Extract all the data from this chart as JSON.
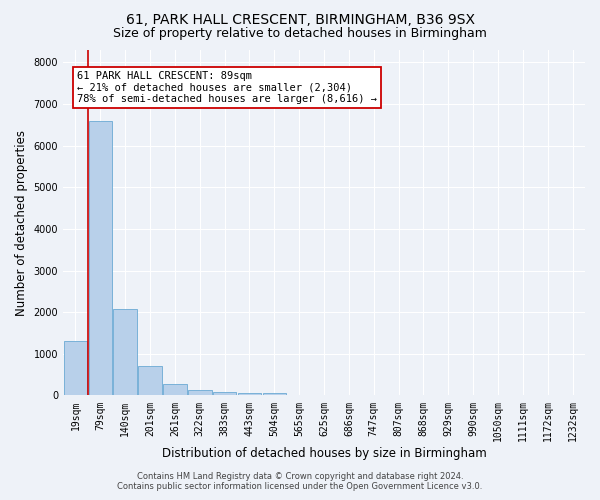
{
  "title1": "61, PARK HALL CRESCENT, BIRMINGHAM, B36 9SX",
  "title2": "Size of property relative to detached houses in Birmingham",
  "xlabel": "Distribution of detached houses by size in Birmingham",
  "ylabel": "Number of detached properties",
  "footer1": "Contains HM Land Registry data © Crown copyright and database right 2024.",
  "footer2": "Contains public sector information licensed under the Open Government Licence v3.0.",
  "bin_labels": [
    "19sqm",
    "79sqm",
    "140sqm",
    "201sqm",
    "261sqm",
    "322sqm",
    "383sqm",
    "443sqm",
    "504sqm",
    "565sqm",
    "625sqm",
    "686sqm",
    "747sqm",
    "807sqm",
    "868sqm",
    "929sqm",
    "990sqm",
    "1050sqm",
    "1111sqm",
    "1172sqm",
    "1232sqm"
  ],
  "bar_values": [
    1300,
    6600,
    2080,
    700,
    270,
    140,
    90,
    50,
    50,
    0,
    0,
    0,
    0,
    0,
    0,
    0,
    0,
    0,
    0,
    0,
    0
  ],
  "bar_color": "#b8d0ea",
  "bar_edge_color": "#6aaad4",
  "vline_color": "#cc0000",
  "annotation_text": "61 PARK HALL CRESCENT: 89sqm\n← 21% of detached houses are smaller (2,304)\n78% of semi-detached houses are larger (8,616) →",
  "annotation_box_color": "#ffffff",
  "annotation_border_color": "#cc0000",
  "ylim": [
    0,
    8300
  ],
  "yticks": [
    0,
    1000,
    2000,
    3000,
    4000,
    5000,
    6000,
    7000,
    8000
  ],
  "bg_color": "#eef2f8",
  "plot_bg_color": "#eef2f8",
  "grid_color": "#ffffff",
  "title_fontsize": 10,
  "subtitle_fontsize": 9,
  "axis_label_fontsize": 8.5,
  "tick_fontsize": 7,
  "annotation_fontsize": 7.5,
  "footer_fontsize": 6
}
